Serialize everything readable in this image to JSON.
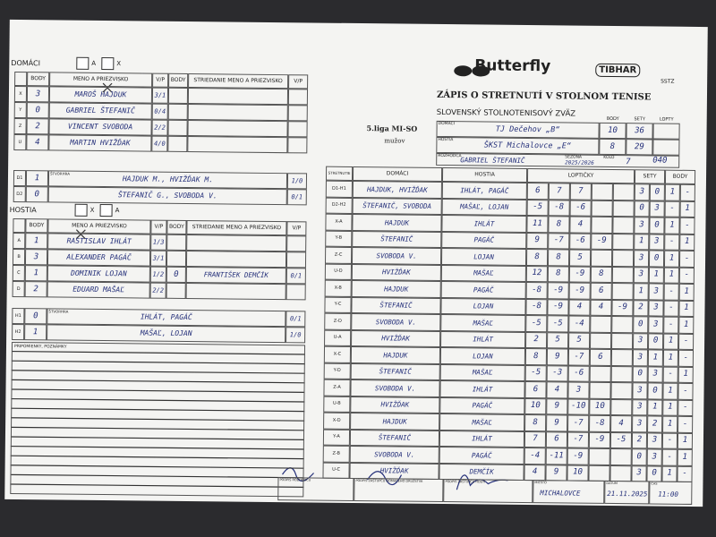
{
  "header": {
    "brand": "Butterfly",
    "brand2": "TIBHAR",
    "federation_logo": "SSTZ",
    "title": "ZÁPIS O STRETNUTÍ V STOLNOM TENISE",
    "subtitle": "SLOVENSKÝ STOLNOTENISOVÝ ZVÄZ",
    "league": "5.liga MI-SO",
    "league_sub": "mužov"
  },
  "home": {
    "label": "DOMÁCI",
    "boxes": [
      {
        "label": "A",
        "checked": false
      },
      {
        "label": "X",
        "checked": true
      }
    ],
    "columns": [
      "BODY",
      "MENO A PRIEZVISKO",
      "V/P",
      "BODY",
      "STRIEDANIE MENO A PRIEZVISKO",
      "V/P"
    ],
    "players": [
      {
        "code": "X",
        "points": 3,
        "name": "MAROŠ HAJDUK",
        "vp": "3/1"
      },
      {
        "code": "Y",
        "points": 0,
        "name": "GABRIEL ŠTEFANIČ",
        "vp": "0/4"
      },
      {
        "code": "Z",
        "points": 2,
        "name": "VINCENT SVOBODA",
        "vp": "2/2"
      },
      {
        "code": "U",
        "points": 4,
        "name": "MARTIN HVIŽĎAK",
        "vp": "4/0"
      }
    ],
    "doubles_label": "ŠTVORHRA",
    "doubles": [
      {
        "code": "D1",
        "points": 1,
        "name": "HAJDUK M., HVIŽĎAK M.",
        "vp": "1/0"
      },
      {
        "code": "D2",
        "points": 0,
        "name": "ŠTEFANIČ G., SVOBODA V.",
        "vp": "0/1"
      }
    ]
  },
  "guests": {
    "label": "HOSTIA",
    "boxes": [
      {
        "label": "X",
        "checked": true
      },
      {
        "label": "A",
        "checked": false
      }
    ],
    "columns": [
      "BODY",
      "MENO A PRIEZVISKO",
      "V/P",
      "BODY",
      "STRIEDANIE MENO A PRIEZVISKO",
      "V/P"
    ],
    "players": [
      {
        "code": "A",
        "points": 1,
        "name": "RASTISLAV IHLÁT",
        "vp": "1/3"
      },
      {
        "code": "B",
        "points": 3,
        "name": "ALEXANDER PAGÁČ",
        "vp": "3/1"
      },
      {
        "code": "C",
        "points": 1,
        "name": "DOMINIK LOJAN",
        "vp": "1/2"
      },
      {
        "code": "D",
        "points": 2,
        "name": "EDUARD MAŠAĽ",
        "vp": "2/2"
      }
    ],
    "substitute": {
      "row": 2,
      "points": 0,
      "name": "FRANTIŠEK DEMČÍK",
      "vp": "0/1"
    },
    "doubles_label": "ŠTVORHRA",
    "doubles": [
      {
        "code": "H1",
        "points": 0,
        "name": "IHLÁT, PAGÁČ",
        "vp": "0/1"
      },
      {
        "code": "H2",
        "points": 1,
        "name": "MAŠAĽ, LOJAN",
        "vp": "1/0"
      }
    ]
  },
  "notes_label": "PRIPOMIENKY, POZNÁMKY",
  "result": {
    "columns": [
      "BODY",
      "SETY",
      "LOPTY"
    ],
    "home_label": "DOMÁCI",
    "home_team": "TJ Dečehov „B“",
    "home_points": 10,
    "home_sets": 36,
    "guest_label": "HOSTIA",
    "guest_team": "ŠKST Michalovce „E“",
    "guest_points": 8,
    "guest_sets": 29,
    "referee_label": "ROZHODCA",
    "referee": "GABRIEL ŠTEFANIČ",
    "season_label": "SEZÓNA",
    "season": "2025/2026",
    "round_label": "KOLO",
    "round": 7,
    "extra": "040"
  },
  "matches": {
    "columns": [
      "STRETNUTIE",
      "DOMÁCI",
      "HOSTIA",
      "LOPTIČKY",
      "SETY",
      "BODY"
    ],
    "rows": [
      {
        "code": "D1-H1",
        "home": "HAJDUK, HVIŽĎAK",
        "guest": "IHLÁT, PAGÁČ",
        "balls": [
          "6",
          "7",
          "7"
        ],
        "sets": [
          "3",
          "0"
        ],
        "points": [
          "1",
          "-"
        ]
      },
      {
        "code": "D2-H2",
        "home": "ŠTEFANIČ, SVOBODA",
        "guest": "MAŠAĽ, LOJAN",
        "balls": [
          "-5",
          "-8",
          "-6"
        ],
        "sets": [
          "0",
          "3"
        ],
        "points": [
          "-",
          "1"
        ]
      },
      {
        "code": "X-A",
        "home": "HAJDUK",
        "guest": "IHLÁT",
        "balls": [
          "11",
          "8",
          "4"
        ],
        "sets": [
          "3",
          "0"
        ],
        "points": [
          "1",
          "-"
        ]
      },
      {
        "code": "Y-B",
        "home": "ŠTEFANIČ",
        "guest": "PAGÁČ",
        "balls": [
          "9",
          "-7",
          "-6",
          "-9"
        ],
        "sets": [
          "1",
          "3"
        ],
        "points": [
          "-",
          "1"
        ]
      },
      {
        "code": "Z-C",
        "home": "SVOBODA V.",
        "guest": "LOJAN",
        "balls": [
          "8",
          "8",
          "5"
        ],
        "sets": [
          "3",
          "0"
        ],
        "points": [
          "1",
          "-"
        ]
      },
      {
        "code": "U-D",
        "home": "HVIŽĎAK",
        "guest": "MAŠAĽ",
        "balls": [
          "12",
          "8",
          "-9",
          "8"
        ],
        "sets": [
          "3",
          "1"
        ],
        "points": [
          "1",
          "-"
        ]
      },
      {
        "code": "X-B",
        "home": "HAJDUK",
        "guest": "PAGÁČ",
        "balls": [
          "-8",
          "-9",
          "-9",
          "6"
        ],
        "sets": [
          "1",
          "3"
        ],
        "points": [
          "-",
          "1"
        ]
      },
      {
        "code": "Y-C",
        "home": "ŠTEFANIČ",
        "guest": "LOJAN",
        "balls": [
          "-8",
          "-9",
          "4",
          "4",
          "-9"
        ],
        "sets": [
          "2",
          "3"
        ],
        "points": [
          "-",
          "1"
        ]
      },
      {
        "code": "Z-D",
        "home": "SVOBODA V.",
        "guest": "MAŠAĽ",
        "balls": [
          "-5",
          "-5",
          "-4"
        ],
        "sets": [
          "0",
          "3"
        ],
        "points": [
          "-",
          "1"
        ]
      },
      {
        "code": "U-A",
        "home": "HVIŽĎAK",
        "guest": "IHLÁT",
        "balls": [
          "2",
          "5",
          "5"
        ],
        "sets": [
          "3",
          "0"
        ],
        "points": [
          "1",
          "-"
        ]
      },
      {
        "code": "X-C",
        "home": "HAJDUK",
        "guest": "LOJAN",
        "balls": [
          "8",
          "9",
          "-7",
          "6"
        ],
        "sets": [
          "3",
          "1"
        ],
        "points": [
          "1",
          "-"
        ]
      },
      {
        "code": "Y-D",
        "home": "ŠTEFANIČ",
        "guest": "MAŠAĽ",
        "balls": [
          "-5",
          "-3",
          "-6"
        ],
        "sets": [
          "0",
          "3"
        ],
        "points": [
          "-",
          "1"
        ]
      },
      {
        "code": "Z-A",
        "home": "SVOBODA V.",
        "guest": "IHLÁT",
        "balls": [
          "6",
          "4",
          "3"
        ],
        "sets": [
          "3",
          "0"
        ],
        "points": [
          "1",
          "-"
        ]
      },
      {
        "code": "U-B",
        "home": "HVIŽĎAK",
        "guest": "PAGÁČ",
        "balls": [
          "10",
          "9",
          "-10",
          "10"
        ],
        "sets": [
          "3",
          "1"
        ],
        "points": [
          "1",
          "-"
        ]
      },
      {
        "code": "X-D",
        "home": "HAJDUK",
        "guest": "MAŠAĽ",
        "balls": [
          "8",
          "9",
          "-7",
          "-8",
          "4"
        ],
        "sets": [
          "3",
          "2"
        ],
        "points": [
          "1",
          "-"
        ]
      },
      {
        "code": "Y-A",
        "home": "ŠTEFANIČ",
        "guest": "IHLÁT",
        "balls": [
          "7",
          "6",
          "-7",
          "-9",
          "-5"
        ],
        "sets": [
          "2",
          "3"
        ],
        "points": [
          "-",
          "1"
        ]
      },
      {
        "code": "Z-B",
        "home": "SVOBODA V.",
        "guest": "PAGÁČ",
        "balls": [
          "-4",
          "-11",
          "-9"
        ],
        "sets": [
          "0",
          "3"
        ],
        "points": [
          "-",
          "1"
        ]
      },
      {
        "code": "U-C",
        "home": "HVIŽĎAK",
        "guest": "DEMČÍK",
        "balls": [
          "4",
          "9",
          "10"
        ],
        "sets": [
          "3",
          "0"
        ],
        "points": [
          "1",
          "-"
        ]
      }
    ]
  },
  "footer": {
    "labels": [
      "PODPIS ROZHODCU",
      "PODPIS ZÁSTUPCU DOMÁCEHO DRUŽSTVA",
      "PODPIS ZÁSTUPCU HOSTÍ",
      "MIESTO",
      "DÁTUM",
      "ČAS"
    ],
    "place": "MICHALOVCE",
    "date": "21.11.2025",
    "time": "11:00"
  }
}
